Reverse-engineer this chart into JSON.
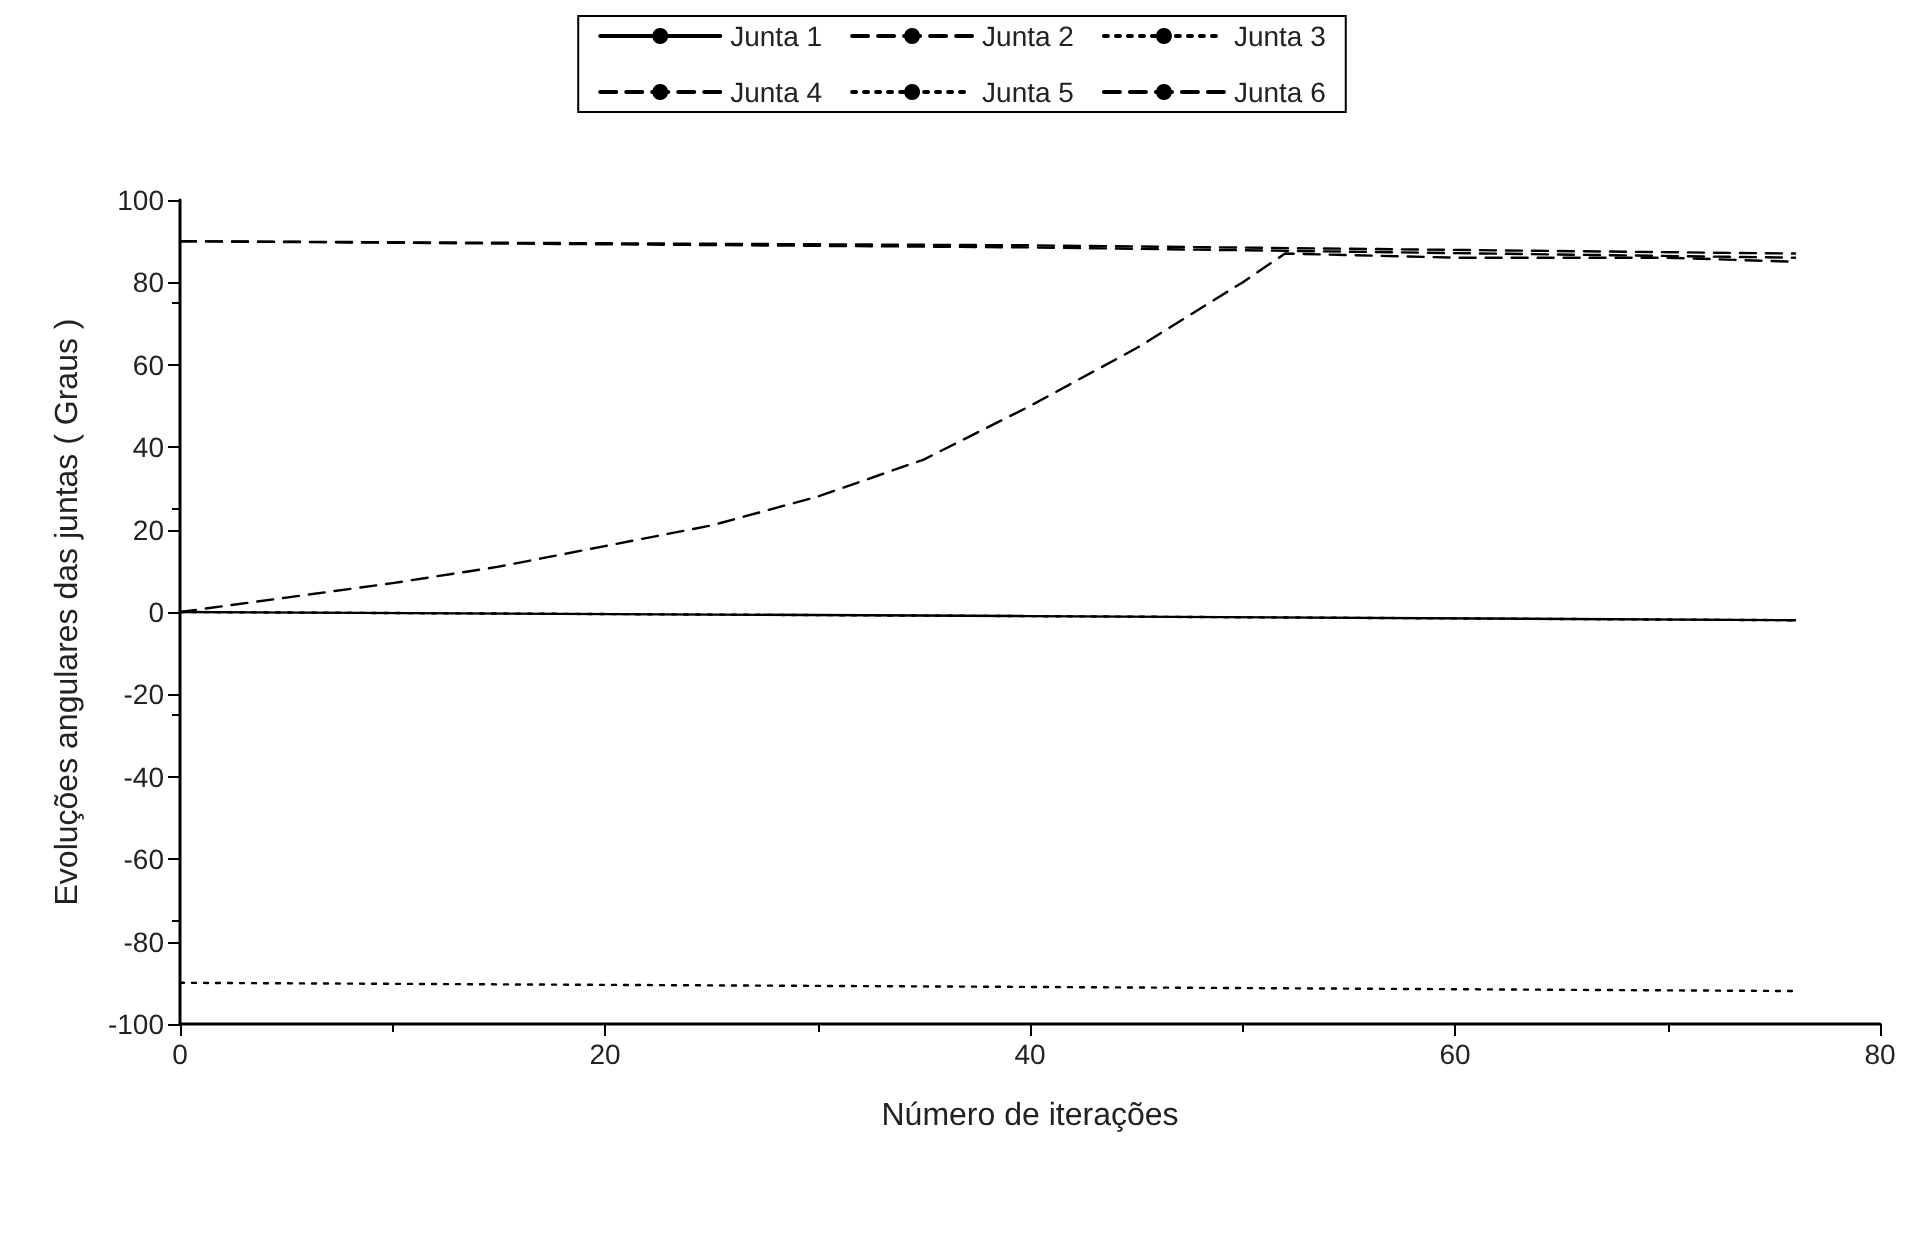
{
  "chart_data": {
    "type": "line",
    "xlabel": "Número de iterações",
    "ylabel": "Evoluções angulares das juntas ( Graus )",
    "xlim": [
      0,
      80
    ],
    "xticks": [
      0,
      20,
      40,
      60,
      80
    ],
    "ylim": [
      -100,
      100
    ],
    "yticks": [
      -100,
      -80,
      -60,
      -40,
      -20,
      0,
      20,
      40,
      60,
      80,
      100
    ],
    "grid": false,
    "legend": "top",
    "marker": "none",
    "series": [
      {
        "name": "Junta 1",
        "color": "#000000",
        "line_style": "solid",
        "x": [
          0,
          40,
          76
        ],
        "values": [
          0,
          -1,
          -2
        ]
      },
      {
        "name": "Junta 2",
        "color": "#000000",
        "line_style": "dashed",
        "x": [
          0,
          5,
          10,
          15,
          20,
          25,
          30,
          35,
          40,
          45,
          50,
          52,
          60,
          70,
          76
        ],
        "values": [
          0,
          3.5,
          7,
          11,
          16,
          21,
          28,
          37,
          50,
          64,
          80,
          87,
          86,
          86,
          85
        ]
      },
      {
        "name": "Junta 3",
        "color": "#000000",
        "line_style": "dotted",
        "x": [
          0,
          40,
          76
        ],
        "values": [
          -90,
          -91,
          -92
        ]
      },
      {
        "name": "Junta 4",
        "color": "#000000",
        "line_style": "dashed",
        "x": [
          0,
          40,
          76
        ],
        "values": [
          90,
          89,
          87
        ]
      },
      {
        "name": "Junta 5",
        "color": "#000000",
        "line_style": "dotted",
        "x": [
          0,
          40,
          76
        ],
        "values": [
          0,
          -1,
          -2
        ]
      },
      {
        "name": "Junta 6",
        "color": "#000000",
        "line_style": "dashed",
        "x": [
          0,
          40,
          76
        ],
        "values": [
          90,
          88.5,
          86
        ]
      }
    ]
  }
}
